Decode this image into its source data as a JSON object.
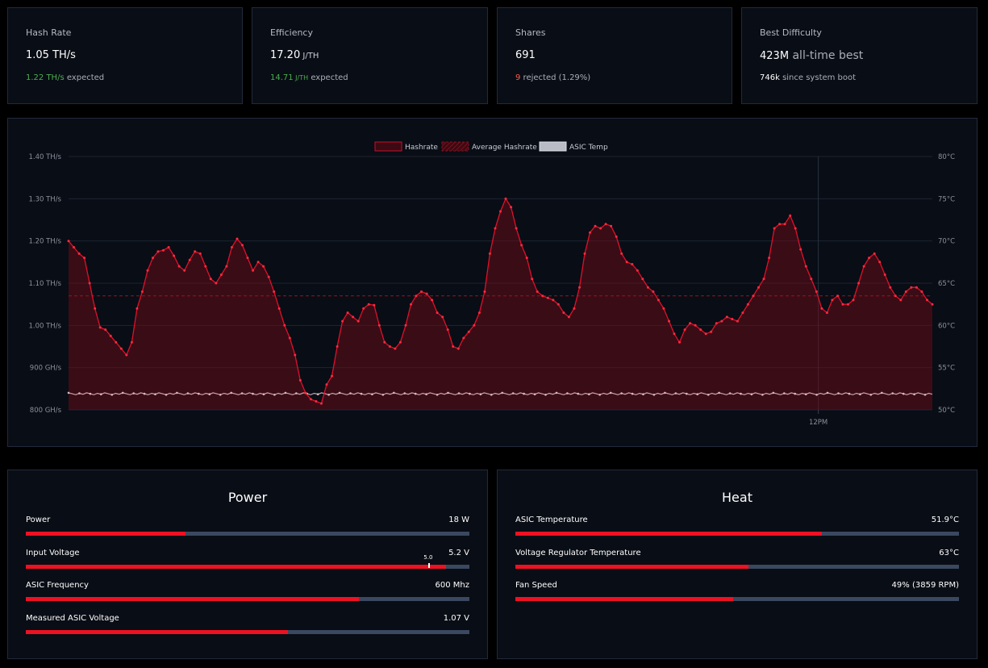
{
  "stats": [
    {
      "title": "Hash Rate",
      "value": "1.05 TH/s",
      "value_unit": "",
      "value_suffix": "",
      "sub_highlight": "1.22 TH/s",
      "sub_highlight_unit": "",
      "sub_text": " expected",
      "sub_color": "green"
    },
    {
      "title": "Efficiency",
      "value": "17.20",
      "value_unit": " J/TH",
      "value_suffix": "",
      "sub_highlight": "14.71",
      "sub_highlight_unit": " J/TH",
      "sub_text": " expected",
      "sub_color": "green"
    },
    {
      "title": "Shares",
      "value": "691",
      "value_unit": "",
      "value_suffix": "",
      "sub_highlight": "9",
      "sub_highlight_unit": "",
      "sub_text": " rejected (1.29%)",
      "sub_color": "red"
    },
    {
      "title": "Best Difficulty",
      "value": "423M",
      "value_unit": "",
      "value_suffix": " all-time best",
      "sub_highlight": "746k",
      "sub_highlight_unit": "",
      "sub_text": " since system boot",
      "sub_color": "white"
    }
  ],
  "chart_data": {
    "type": "line",
    "legend": [
      "Hashrate",
      "Average Hashrate",
      "ASIC Temp"
    ],
    "y_left_ticks": [
      "1.40 TH/s",
      "1.30 TH/s",
      "1.20 TH/s",
      "1.10 TH/s",
      "1.00 TH/s",
      "900 GH/s",
      "800 GH/s"
    ],
    "y_right_ticks": [
      "80°C",
      "75°C",
      "70°C",
      "65°C",
      "60°C",
      "55°C",
      "50°C"
    ],
    "x_tick_label": "12PM",
    "x_tick_position": 0.868,
    "ylim_left_ghs": [
      800,
      1400
    ],
    "ylim_right_c": [
      50,
      80
    ],
    "average_hashrate_ghs": 1070,
    "asic_temp_c": 51.9,
    "hashrate_ghs": [
      1200,
      1185,
      1170,
      1160,
      1100,
      1040,
      995,
      990,
      975,
      960,
      945,
      930,
      960,
      1040,
      1080,
      1130,
      1160,
      1175,
      1178,
      1185,
      1165,
      1140,
      1130,
      1155,
      1175,
      1170,
      1140,
      1110,
      1100,
      1120,
      1140,
      1185,
      1205,
      1190,
      1160,
      1130,
      1150,
      1140,
      1115,
      1080,
      1040,
      1000,
      970,
      930,
      870,
      840,
      825,
      820,
      815,
      860,
      880,
      950,
      1010,
      1030,
      1020,
      1010,
      1040,
      1050,
      1048,
      1000,
      960,
      950,
      945,
      960,
      1000,
      1050,
      1070,
      1080,
      1075,
      1060,
      1030,
      1020,
      990,
      950,
      945,
      970,
      985,
      1000,
      1030,
      1080,
      1170,
      1230,
      1270,
      1300,
      1280,
      1230,
      1190,
      1160,
      1110,
      1080,
      1070,
      1065,
      1060,
      1050,
      1030,
      1020,
      1040,
      1090,
      1170,
      1220,
      1235,
      1230,
      1240,
      1235,
      1210,
      1170,
      1150,
      1145,
      1130,
      1110,
      1090,
      1080,
      1060,
      1040,
      1010,
      980,
      960,
      990,
      1005,
      1000,
      990,
      980,
      985,
      1005,
      1010,
      1020,
      1015,
      1010,
      1030,
      1050,
      1070,
      1090,
      1110,
      1160,
      1230,
      1240,
      1240,
      1260,
      1230,
      1180,
      1140,
      1110,
      1080,
      1040,
      1030,
      1060,
      1070,
      1050,
      1050,
      1060,
      1100,
      1140,
      1160,
      1170,
      1150,
      1120,
      1090,
      1070,
      1060,
      1080,
      1090,
      1090,
      1080,
      1060,
      1050
    ]
  },
  "power_panel": {
    "title": "Power",
    "metrics": [
      {
        "label": "Power",
        "value": "18 W",
        "fill": 0.36
      },
      {
        "label": "Input Voltage",
        "value": "5.2 V",
        "fill": 0.948,
        "marker": 0.907,
        "marker_label": "5.0"
      },
      {
        "label": "ASIC Frequency",
        "value": "600 Mhz",
        "fill": 0.75
      },
      {
        "label": "Measured ASIC Voltage",
        "value": "1.07 V",
        "fill": 0.59
      }
    ]
  },
  "heat_panel": {
    "title": "Heat",
    "metrics": [
      {
        "label": "ASIC Temperature",
        "value": "51.9°C",
        "fill": 0.69
      },
      {
        "label": "Voltage Regulator Temperature",
        "value": "63°C",
        "fill": 0.525
      },
      {
        "label": "Fan Speed",
        "value": "49% (3859 RPM)",
        "fill": 0.49
      }
    ]
  }
}
